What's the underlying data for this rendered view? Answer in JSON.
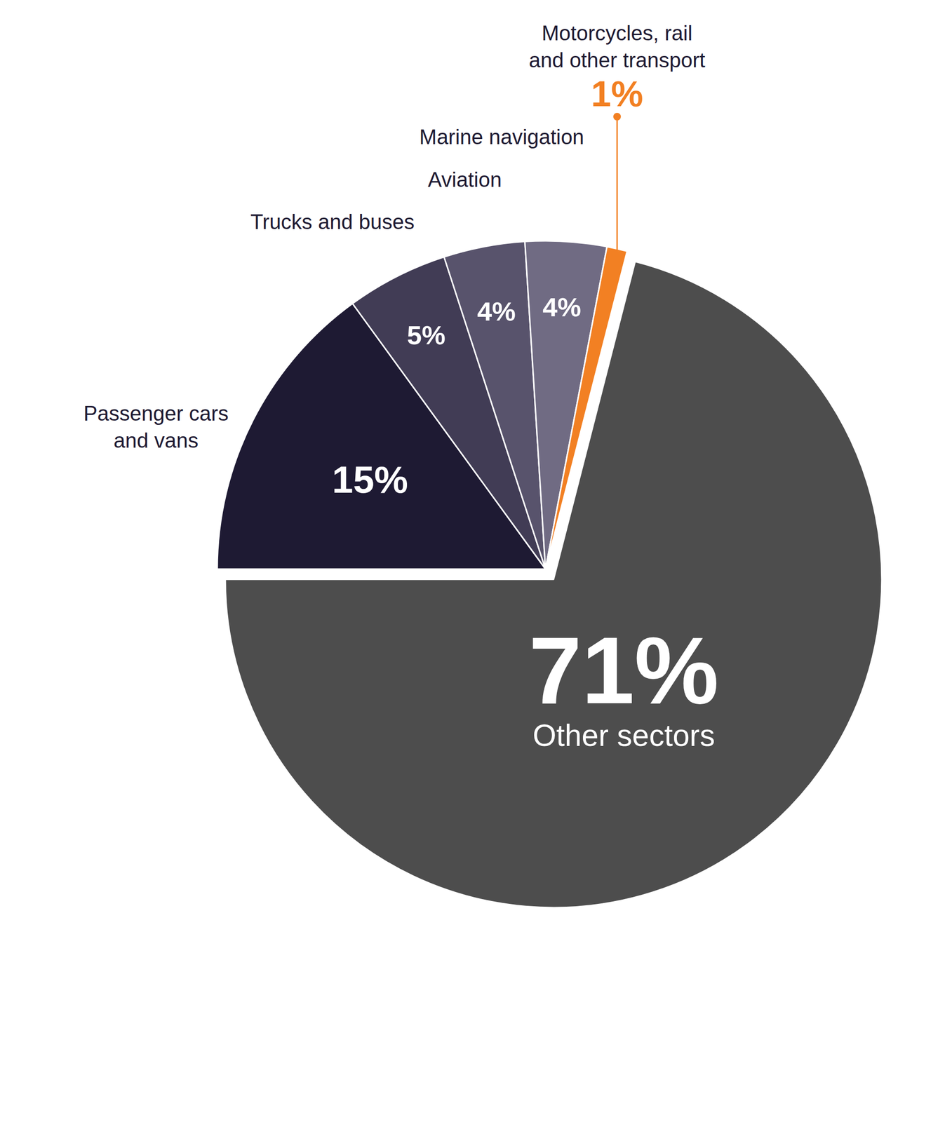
{
  "chart_data": {
    "type": "pie",
    "categories": [
      "Passenger cars and vans",
      "Trucks and buses",
      "Aviation",
      "Marine navigation",
      "Motorcycles, rail and other transport",
      "Other sectors"
    ],
    "values": [
      15,
      5,
      4,
      4,
      1,
      71
    ],
    "value_labels": [
      "15%",
      "5%",
      "4%",
      "4%",
      "1%",
      "71%"
    ],
    "colors": [
      "#1e1a33",
      "#413c55",
      "#58536c",
      "#706b83",
      "#f28023",
      "#4d4d4d"
    ],
    "data_labels": true
  }
}
